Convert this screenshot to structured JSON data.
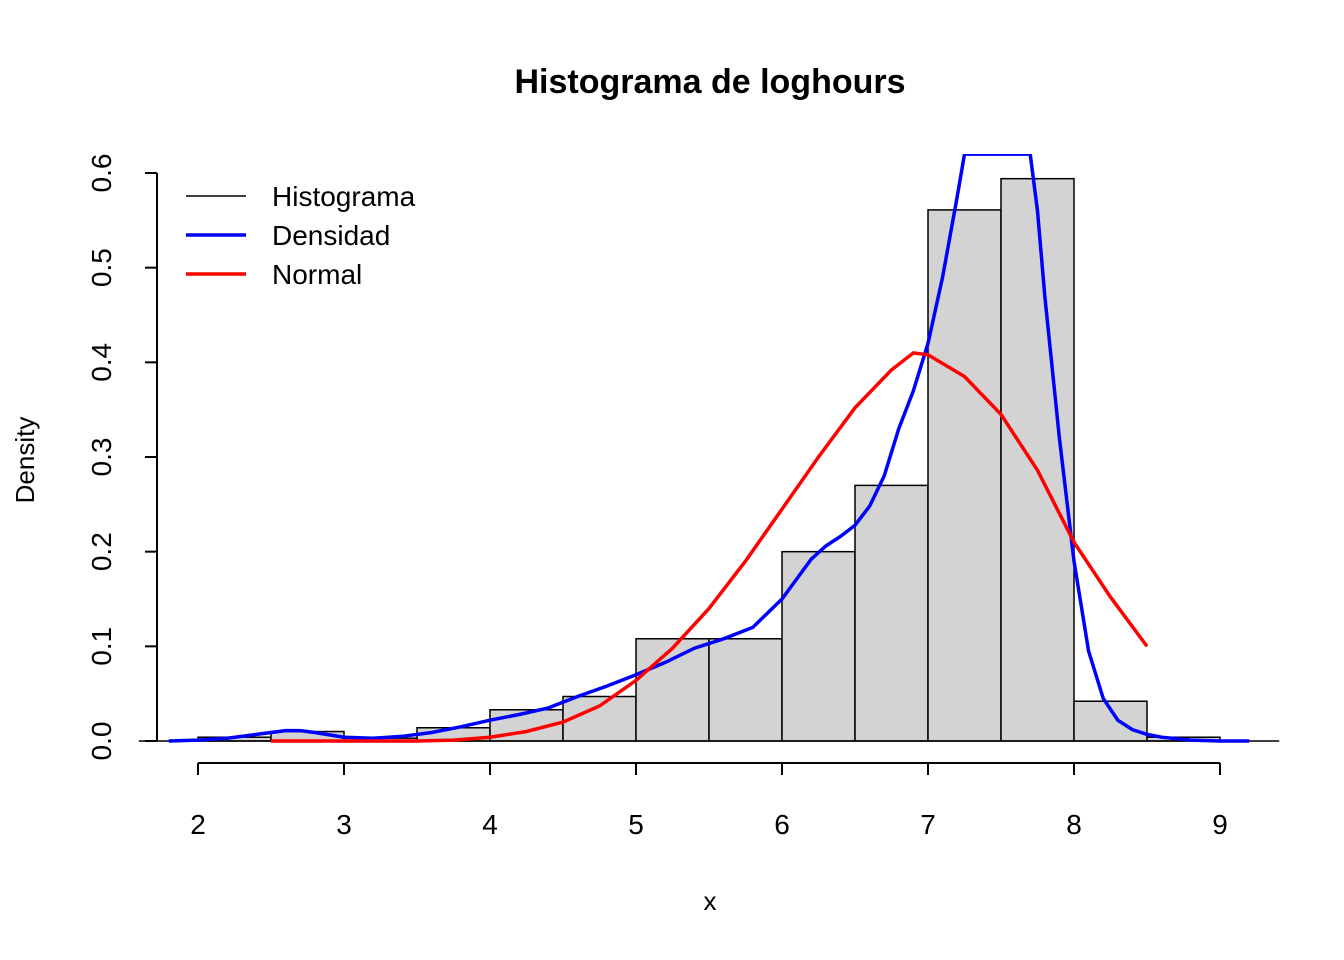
{
  "chart_data": {
    "type": "bar",
    "title": "Histograma de loghours",
    "xlabel": "x",
    "ylabel": "Density",
    "xlim": [
      1.8,
      9.2
    ],
    "ylim": [
      0,
      0.6
    ],
    "x_ticks": [
      "2",
      "3",
      "4",
      "5",
      "6",
      "7",
      "8",
      "9"
    ],
    "y_ticks": [
      "0.0",
      "0.1",
      "0.2",
      "0.3",
      "0.4",
      "0.5",
      "0.6"
    ],
    "bins": [
      {
        "x0": 2.0,
        "x1": 2.5,
        "density": 0.004
      },
      {
        "x0": 2.5,
        "x1": 3.0,
        "density": 0.01
      },
      {
        "x0": 3.0,
        "x1": 3.5,
        "density": 0.003
      },
      {
        "x0": 3.5,
        "x1": 4.0,
        "density": 0.014
      },
      {
        "x0": 4.0,
        "x1": 4.5,
        "density": 0.033
      },
      {
        "x0": 4.5,
        "x1": 5.0,
        "density": 0.047
      },
      {
        "x0": 5.0,
        "x1": 5.5,
        "density": 0.108
      },
      {
        "x0": 5.5,
        "x1": 6.0,
        "density": 0.108
      },
      {
        "x0": 6.0,
        "x1": 6.5,
        "density": 0.2
      },
      {
        "x0": 6.5,
        "x1": 7.0,
        "density": 0.27
      },
      {
        "x0": 7.0,
        "x1": 7.5,
        "density": 0.561
      },
      {
        "x0": 7.5,
        "x1": 8.0,
        "density": 0.594
      },
      {
        "x0": 8.0,
        "x1": 8.5,
        "density": 0.042
      },
      {
        "x0": 8.5,
        "x1": 9.0,
        "density": 0.004
      }
    ],
    "series": [
      {
        "name": "Densidad",
        "color": "#0000ff",
        "x": [
          1.8,
          2.0,
          2.2,
          2.4,
          2.6,
          2.7,
          2.8,
          3.0,
          3.2,
          3.4,
          3.6,
          3.8,
          4.0,
          4.2,
          4.4,
          4.6,
          4.8,
          5.0,
          5.2,
          5.4,
          5.6,
          5.8,
          6.0,
          6.1,
          6.2,
          6.3,
          6.4,
          6.5,
          6.6,
          6.7,
          6.8,
          6.9,
          7.0,
          7.1,
          7.2,
          7.25,
          7.7,
          7.75,
          7.8,
          7.9,
          8.0,
          8.1,
          8.2,
          8.3,
          8.4,
          8.5,
          8.6,
          8.8,
          9.0,
          9.2
        ],
        "y": [
          0.0,
          0.001,
          0.003,
          0.007,
          0.011,
          0.011,
          0.009,
          0.004,
          0.003,
          0.005,
          0.009,
          0.015,
          0.022,
          0.028,
          0.035,
          0.047,
          0.058,
          0.07,
          0.083,
          0.098,
          0.108,
          0.12,
          0.15,
          0.171,
          0.192,
          0.206,
          0.216,
          0.228,
          0.248,
          0.28,
          0.33,
          0.37,
          0.42,
          0.49,
          0.575,
          0.62,
          0.62,
          0.56,
          0.47,
          0.32,
          0.19,
          0.095,
          0.045,
          0.022,
          0.012,
          0.007,
          0.004,
          0.001,
          0.0,
          0.0
        ]
      },
      {
        "name": "Normal",
        "color": "#ff0000",
        "x": [
          2.5,
          3.0,
          3.5,
          3.75,
          4.0,
          4.25,
          4.5,
          4.75,
          5.0,
          5.25,
          5.5,
          5.75,
          6.0,
          6.25,
          6.5,
          6.75,
          6.9,
          7.0,
          7.25,
          7.5,
          7.75,
          8.0,
          8.25,
          8.5
        ],
        "y": [
          0.0,
          0.0,
          0.0,
          0.001,
          0.004,
          0.01,
          0.02,
          0.037,
          0.064,
          0.098,
          0.14,
          0.19,
          0.245,
          0.3,
          0.352,
          0.392,
          0.41,
          0.408,
          0.385,
          0.345,
          0.286,
          0.21,
          0.152,
          0.1
        ]
      }
    ],
    "legend": {
      "position": "top-left",
      "items": [
        {
          "label": "Histograma",
          "color": "#000000"
        },
        {
          "label": "Densidad",
          "color": "#0000ff"
        },
        {
          "label": "Normal",
          "color": "#ff0000"
        }
      ]
    },
    "bar_fill": "#d3d3d3",
    "bar_stroke": "#000000"
  }
}
